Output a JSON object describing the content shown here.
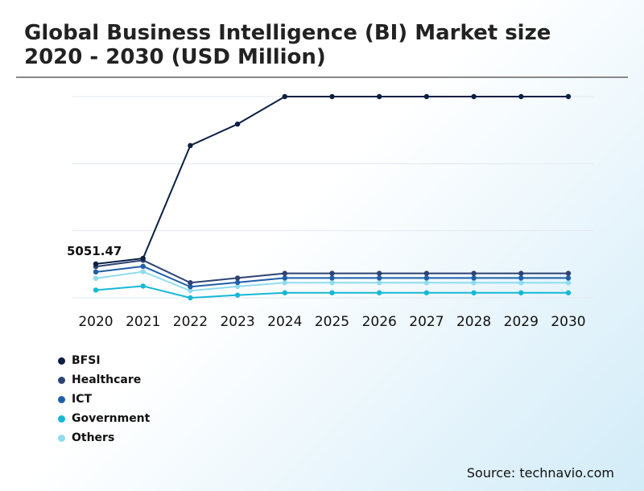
{
  "title": "Global Business Intelligence (BI) Market size 2020 - 2030 (USD Million)",
  "source": "Source: technavio.com",
  "colors": {
    "BFSI": "#0b1f44",
    "Healthcare": "#2e4372",
    "ICT": "#1f5fa8",
    "Government": "#16b8d6",
    "Others": "#8fdcef",
    "grid": "#e3e8ee",
    "text": "#111111"
  },
  "chart_data": {
    "type": "line",
    "title": "Global Business Intelligence (BI) Market size 2020 - 2030 (USD Million)",
    "categories": [
      "2020",
      "2021",
      "2022",
      "2023",
      "2024",
      "2025",
      "2026",
      "2027",
      "2028",
      "2029",
      "2030"
    ],
    "ylim": [
      0,
      30000
    ],
    "grid": true,
    "annotation": {
      "text": "5051.47",
      "series": "BFSI",
      "index": 0
    },
    "series": [
      {
        "name": "BFSI",
        "values": [
          5051.47,
          5880,
          22700,
          25900,
          30000,
          30000,
          30000,
          30000,
          30000,
          30000,
          30000
        ]
      },
      {
        "name": "Healthcare",
        "values": [
          4650,
          5600,
          2250,
          2950,
          3650,
          3650,
          3650,
          3650,
          3650,
          3650,
          3650
        ]
      },
      {
        "name": "ICT",
        "values": [
          3850,
          4700,
          1650,
          2300,
          2950,
          2950,
          2950,
          2950,
          2950,
          2950,
          2950
        ]
      },
      {
        "name": "Government",
        "values": [
          1150,
          1750,
          0,
          400,
          750,
          750,
          750,
          750,
          750,
          750,
          750
        ]
      },
      {
        "name": "Others",
        "values": [
          2900,
          3900,
          1050,
          1700,
          2250,
          2250,
          2250,
          2250,
          2250,
          2250,
          2250
        ]
      }
    ]
  }
}
